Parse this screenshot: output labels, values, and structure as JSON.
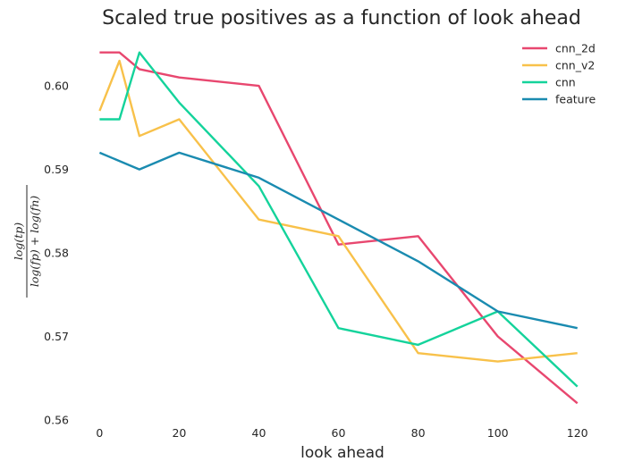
{
  "chart_data": {
    "type": "line",
    "title": "Scaled true positives as a function of look ahead",
    "xlabel": "look ahead",
    "ylabel": {
      "numerator": "log(tp)",
      "denominator": "log(fp) + log(fn)"
    },
    "xlim": [
      -3,
      125
    ],
    "ylim": [
      0.56,
      0.606
    ],
    "x_ticks": [
      0,
      20,
      40,
      60,
      80,
      100,
      120
    ],
    "y_ticks": [
      0.56,
      0.57,
      0.58,
      0.59,
      0.6
    ],
    "y_tick_labels": [
      "0.56",
      "0.57",
      "0.58",
      "0.59",
      "0.60"
    ],
    "grid": false,
    "legend_position": "top-right",
    "series": [
      {
        "name": "cnn_2d",
        "color": "#e8476f",
        "x": [
          0,
          5,
          10,
          20,
          40,
          60,
          80,
          100,
          120
        ],
        "y": [
          0.604,
          0.604,
          0.602,
          0.601,
          0.6,
          0.581,
          0.582,
          0.57,
          0.562
        ]
      },
      {
        "name": "cnn_v2",
        "color": "#f8c14a",
        "x": [
          0,
          5,
          10,
          20,
          40,
          60,
          80,
          100,
          120
        ],
        "y": [
          0.597,
          0.603,
          0.594,
          0.596,
          0.584,
          0.582,
          0.568,
          0.567,
          0.568
        ]
      },
      {
        "name": "cnn",
        "color": "#14d39b",
        "x": [
          0,
          5,
          10,
          20,
          40,
          60,
          80,
          100,
          120
        ],
        "y": [
          0.596,
          0.596,
          0.604,
          0.598,
          0.588,
          0.571,
          0.569,
          0.573,
          0.564
        ]
      },
      {
        "name": "feature",
        "color": "#1a8bb0",
        "x": [
          0,
          10,
          20,
          40,
          60,
          80,
          100,
          120
        ],
        "y": [
          0.592,
          0.59,
          0.592,
          0.589,
          0.584,
          0.579,
          0.573,
          0.571
        ]
      }
    ]
  }
}
